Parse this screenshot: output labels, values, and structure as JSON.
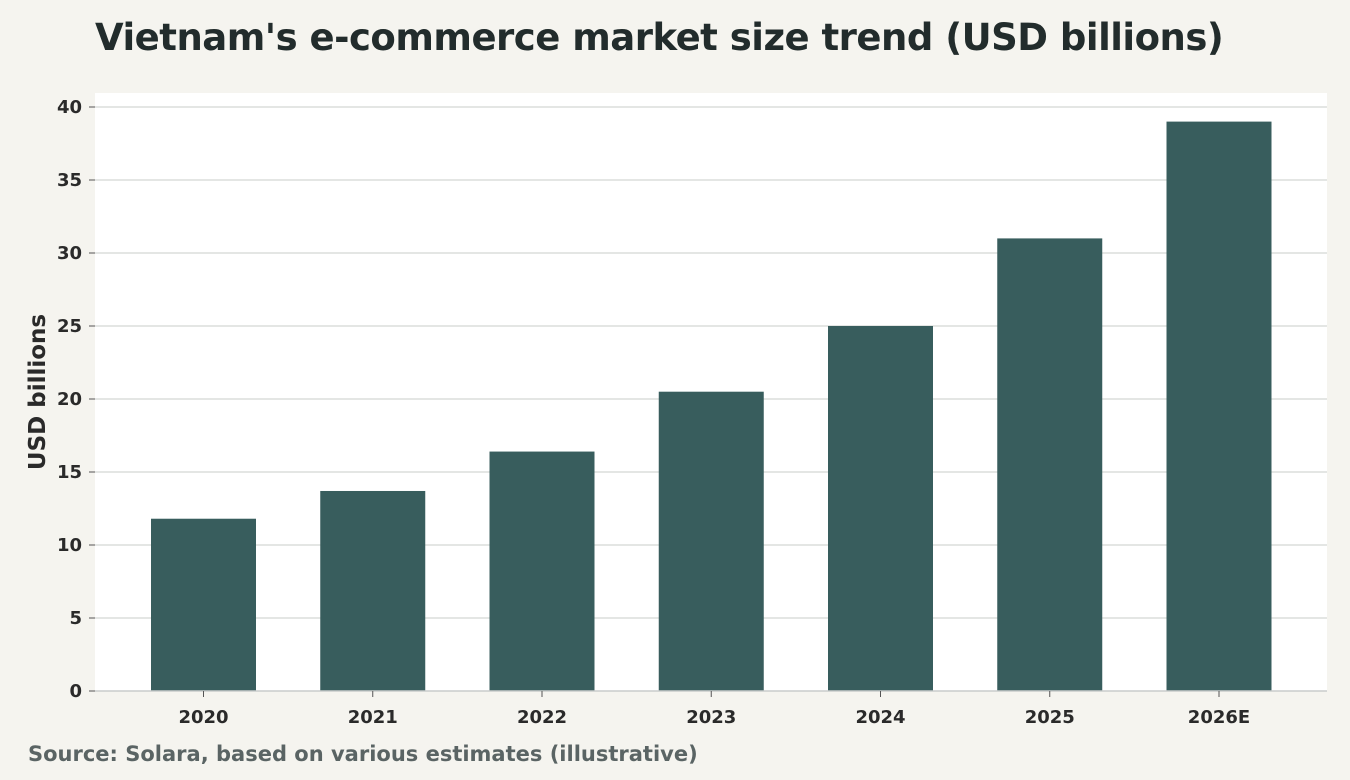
{
  "chart_data": {
    "type": "bar",
    "title": "Vietnam's e-commerce market size trend (USD billions)",
    "xlabel": "",
    "ylabel": "USD billions",
    "categories": [
      "2020",
      "2021",
      "2022",
      "2023",
      "2024",
      "2025",
      "2026E"
    ],
    "values": [
      11.8,
      13.7,
      16.4,
      20.5,
      25.0,
      31.0,
      39.0
    ],
    "ylim": [
      0,
      40
    ],
    "yticks": [
      0,
      5,
      10,
      15,
      20,
      25,
      30,
      35,
      40
    ],
    "grid": true,
    "legend": "none",
    "colors": {
      "bar": "#385d5d",
      "plot_background": "#ffffff",
      "page_background": "#f5f4ef",
      "grid": "#dcdedc"
    }
  },
  "source": "Source: Solara, based on various estimates (illustrative)"
}
